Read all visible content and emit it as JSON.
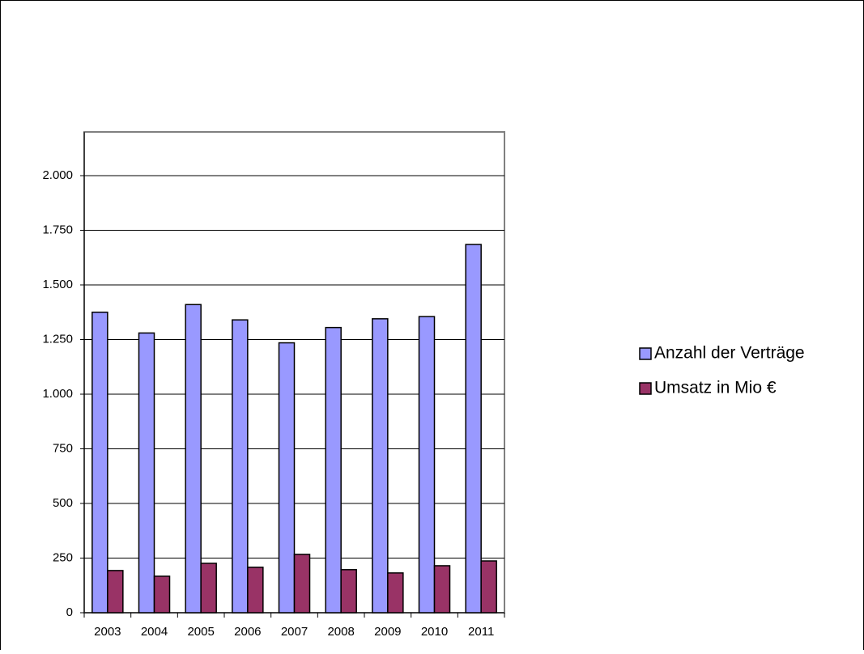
{
  "chart_data": {
    "type": "bar",
    "categories": [
      "2003",
      "2004",
      "2005",
      "2006",
      "2007",
      "2008",
      "2009",
      "2010",
      "2011"
    ],
    "series": [
      {
        "name": "Anzahl der Verträge",
        "color": "#9999ff",
        "values": [
          1375,
          1280,
          1410,
          1340,
          1235,
          1305,
          1345,
          1355,
          1685
        ]
      },
      {
        "name": "Umsatz in Mio €",
        "color": "#993366",
        "values": [
          193,
          167,
          226,
          208,
          267,
          197,
          182,
          215,
          237
        ]
      }
    ],
    "ylim": [
      0,
      2200
    ],
    "yticks": [
      0,
      250,
      500,
      750,
      {
        "value": 1000,
        "label": "1.000"
      },
      {
        "value": 1250,
        "label": "1.250"
      },
      {
        "value": 1500,
        "label": "1.500"
      },
      {
        "value": 1750,
        "label": "1.750"
      },
      {
        "value": 2000,
        "label": "2.000"
      }
    ],
    "grid": true,
    "legend": "right"
  }
}
